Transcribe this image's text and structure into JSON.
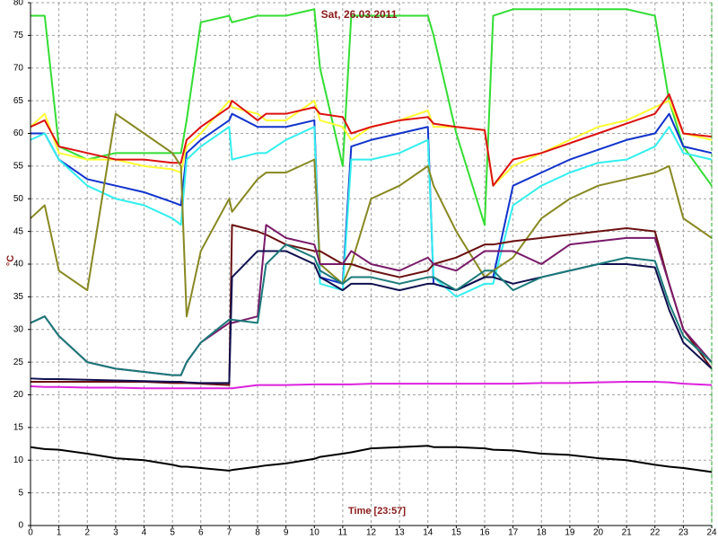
{
  "chart_data": {
    "type": "line",
    "title": "Sat, 26.03.2011",
    "x_label": "Time [23:57]",
    "y_label": "°C",
    "grid": true,
    "x": [
      0,
      0.5,
      1,
      2,
      3,
      4,
      5,
      5.3,
      5.5,
      6,
      7,
      7.1,
      8,
      8.3,
      9,
      10,
      10.2,
      11,
      11.3,
      12,
      13,
      14,
      14.2,
      15,
      16,
      16.3,
      17,
      18,
      19,
      20,
      21,
      22,
      22.5,
      23,
      24
    ],
    "xlim": [
      0,
      24
    ],
    "xticks": [
      0,
      1,
      2,
      3,
      4,
      5,
      6,
      7,
      8,
      9,
      10,
      11,
      12,
      13,
      14,
      15,
      16,
      17,
      18,
      19,
      20,
      21,
      22,
      23,
      24
    ],
    "ylim": [
      0,
      80
    ],
    "yticks": [
      0,
      5,
      10,
      15,
      20,
      25,
      30,
      35,
      40,
      45,
      50,
      55,
      60,
      65,
      70,
      75,
      80
    ],
    "series": [
      {
        "color": "#33dd33",
        "values": [
          78,
          78,
          58,
          56,
          57,
          57,
          57,
          57,
          62,
          77,
          78,
          77,
          78,
          78,
          78,
          79,
          70,
          55,
          78,
          78,
          78,
          78,
          75,
          60,
          46,
          78,
          79,
          79,
          79,
          79,
          79,
          78,
          65,
          58,
          52
        ]
      },
      {
        "color": "#ffff33",
        "values": [
          61,
          63,
          57,
          56,
          56,
          55,
          54.5,
          54,
          58,
          60,
          65,
          64,
          63,
          62,
          62,
          65,
          62,
          61,
          59,
          61,
          62,
          63.5,
          61,
          61,
          60.5,
          52,
          55,
          57,
          59,
          61,
          62,
          64,
          65,
          60,
          59
        ]
      },
      {
        "color": "#dd1111",
        "values": [
          61,
          62,
          58,
          57,
          56,
          56,
          55.5,
          55.5,
          59,
          61,
          64,
          65,
          62,
          63,
          63,
          64,
          63,
          62.5,
          60,
          61,
          62,
          62.5,
          61.5,
          61,
          60.5,
          52,
          56,
          57,
          58.5,
          60,
          61.5,
          63,
          66,
          60,
          59.5
        ]
      },
      {
        "color": "#1133cc",
        "values": [
          60,
          60,
          56,
          53,
          52,
          51,
          49.5,
          49,
          57,
          59,
          62,
          63,
          61,
          61,
          61,
          62,
          38,
          37,
          58,
          59,
          60,
          61,
          37,
          36,
          38,
          38,
          52,
          54,
          56,
          57.5,
          59,
          60,
          63,
          58,
          57
        ]
      },
      {
        "color": "#33eeee",
        "values": [
          59,
          60,
          56,
          52,
          50,
          49,
          47,
          46,
          56,
          58,
          61,
          56,
          57,
          57,
          59,
          61,
          37,
          36,
          56,
          56,
          57,
          59,
          38,
          35,
          37,
          37,
          49,
          52,
          54,
          55.5,
          56,
          58,
          61,
          57,
          56
        ]
      },
      {
        "color": "#888822",
        "values": [
          47,
          49,
          39,
          36,
          63,
          60,
          57,
          55,
          32,
          42,
          50,
          48,
          53,
          54,
          54,
          56,
          40,
          37,
          40,
          50,
          52,
          55,
          52,
          45,
          38,
          39,
          41,
          47,
          50,
          52,
          53,
          54,
          55,
          47,
          44
        ]
      },
      {
        "color": "#6b1010",
        "values": [
          22,
          22,
          22,
          22,
          22,
          22,
          21.8,
          21.8,
          21.8,
          21.7,
          21.5,
          46,
          45,
          44.5,
          43,
          42,
          42,
          40,
          40,
          39,
          38,
          39,
          40,
          41,
          43,
          43,
          43.5,
          44,
          44.5,
          45,
          45.5,
          45,
          37,
          30,
          24
        ]
      },
      {
        "color": "#7a1a6a",
        "values": [
          31,
          32,
          29,
          25,
          24,
          23.5,
          23,
          23,
          25,
          28,
          31,
          31,
          32,
          46,
          44,
          43,
          40,
          40,
          42,
          40,
          39,
          41,
          40,
          39,
          42,
          42,
          42,
          40,
          43,
          43.5,
          44,
          44,
          37,
          30,
          25
        ]
      },
      {
        "color": "#101050",
        "values": [
          22.5,
          22.4,
          22.4,
          22.3,
          22.2,
          22.1,
          22,
          22,
          21.9,
          21.8,
          21.8,
          38,
          42,
          42,
          42,
          40,
          38,
          36,
          37,
          37,
          36,
          37,
          37,
          36,
          38,
          38,
          37,
          38,
          39,
          40,
          40,
          39.5,
          33,
          28,
          24
        ]
      },
      {
        "color": "#1a7a7a",
        "values": [
          31,
          32,
          29,
          25,
          24,
          23.5,
          23,
          23,
          25,
          28,
          31.5,
          31.5,
          31,
          40,
          43,
          41,
          39,
          37,
          38,
          38,
          37,
          38,
          38,
          36,
          39,
          39,
          36,
          38,
          39,
          40,
          41,
          40.5,
          34,
          29,
          25
        ]
      },
      {
        "color": "#dd22dd",
        "values": [
          21.3,
          21.2,
          21.2,
          21.1,
          21.1,
          21,
          21,
          21,
          21,
          21,
          21,
          21,
          21.5,
          21.5,
          21.5,
          21.6,
          21.6,
          21.6,
          21.6,
          21.7,
          21.7,
          21.7,
          21.7,
          21.7,
          21.7,
          21.7,
          21.7,
          21.8,
          21.8,
          21.9,
          22,
          22,
          21.9,
          21.7,
          21.5
        ]
      },
      {
        "color": "#000000",
        "values": [
          12,
          11.7,
          11.6,
          11,
          10.3,
          10,
          9.3,
          9,
          9,
          8.8,
          8.4,
          8.5,
          9,
          9.2,
          9.5,
          10.2,
          10.5,
          11,
          11.2,
          11.8,
          12,
          12.2,
          12,
          12,
          11.8,
          11.6,
          11.5,
          11,
          10.8,
          10.3,
          10,
          9.3,
          9,
          8.8,
          8.2
        ]
      }
    ]
  }
}
